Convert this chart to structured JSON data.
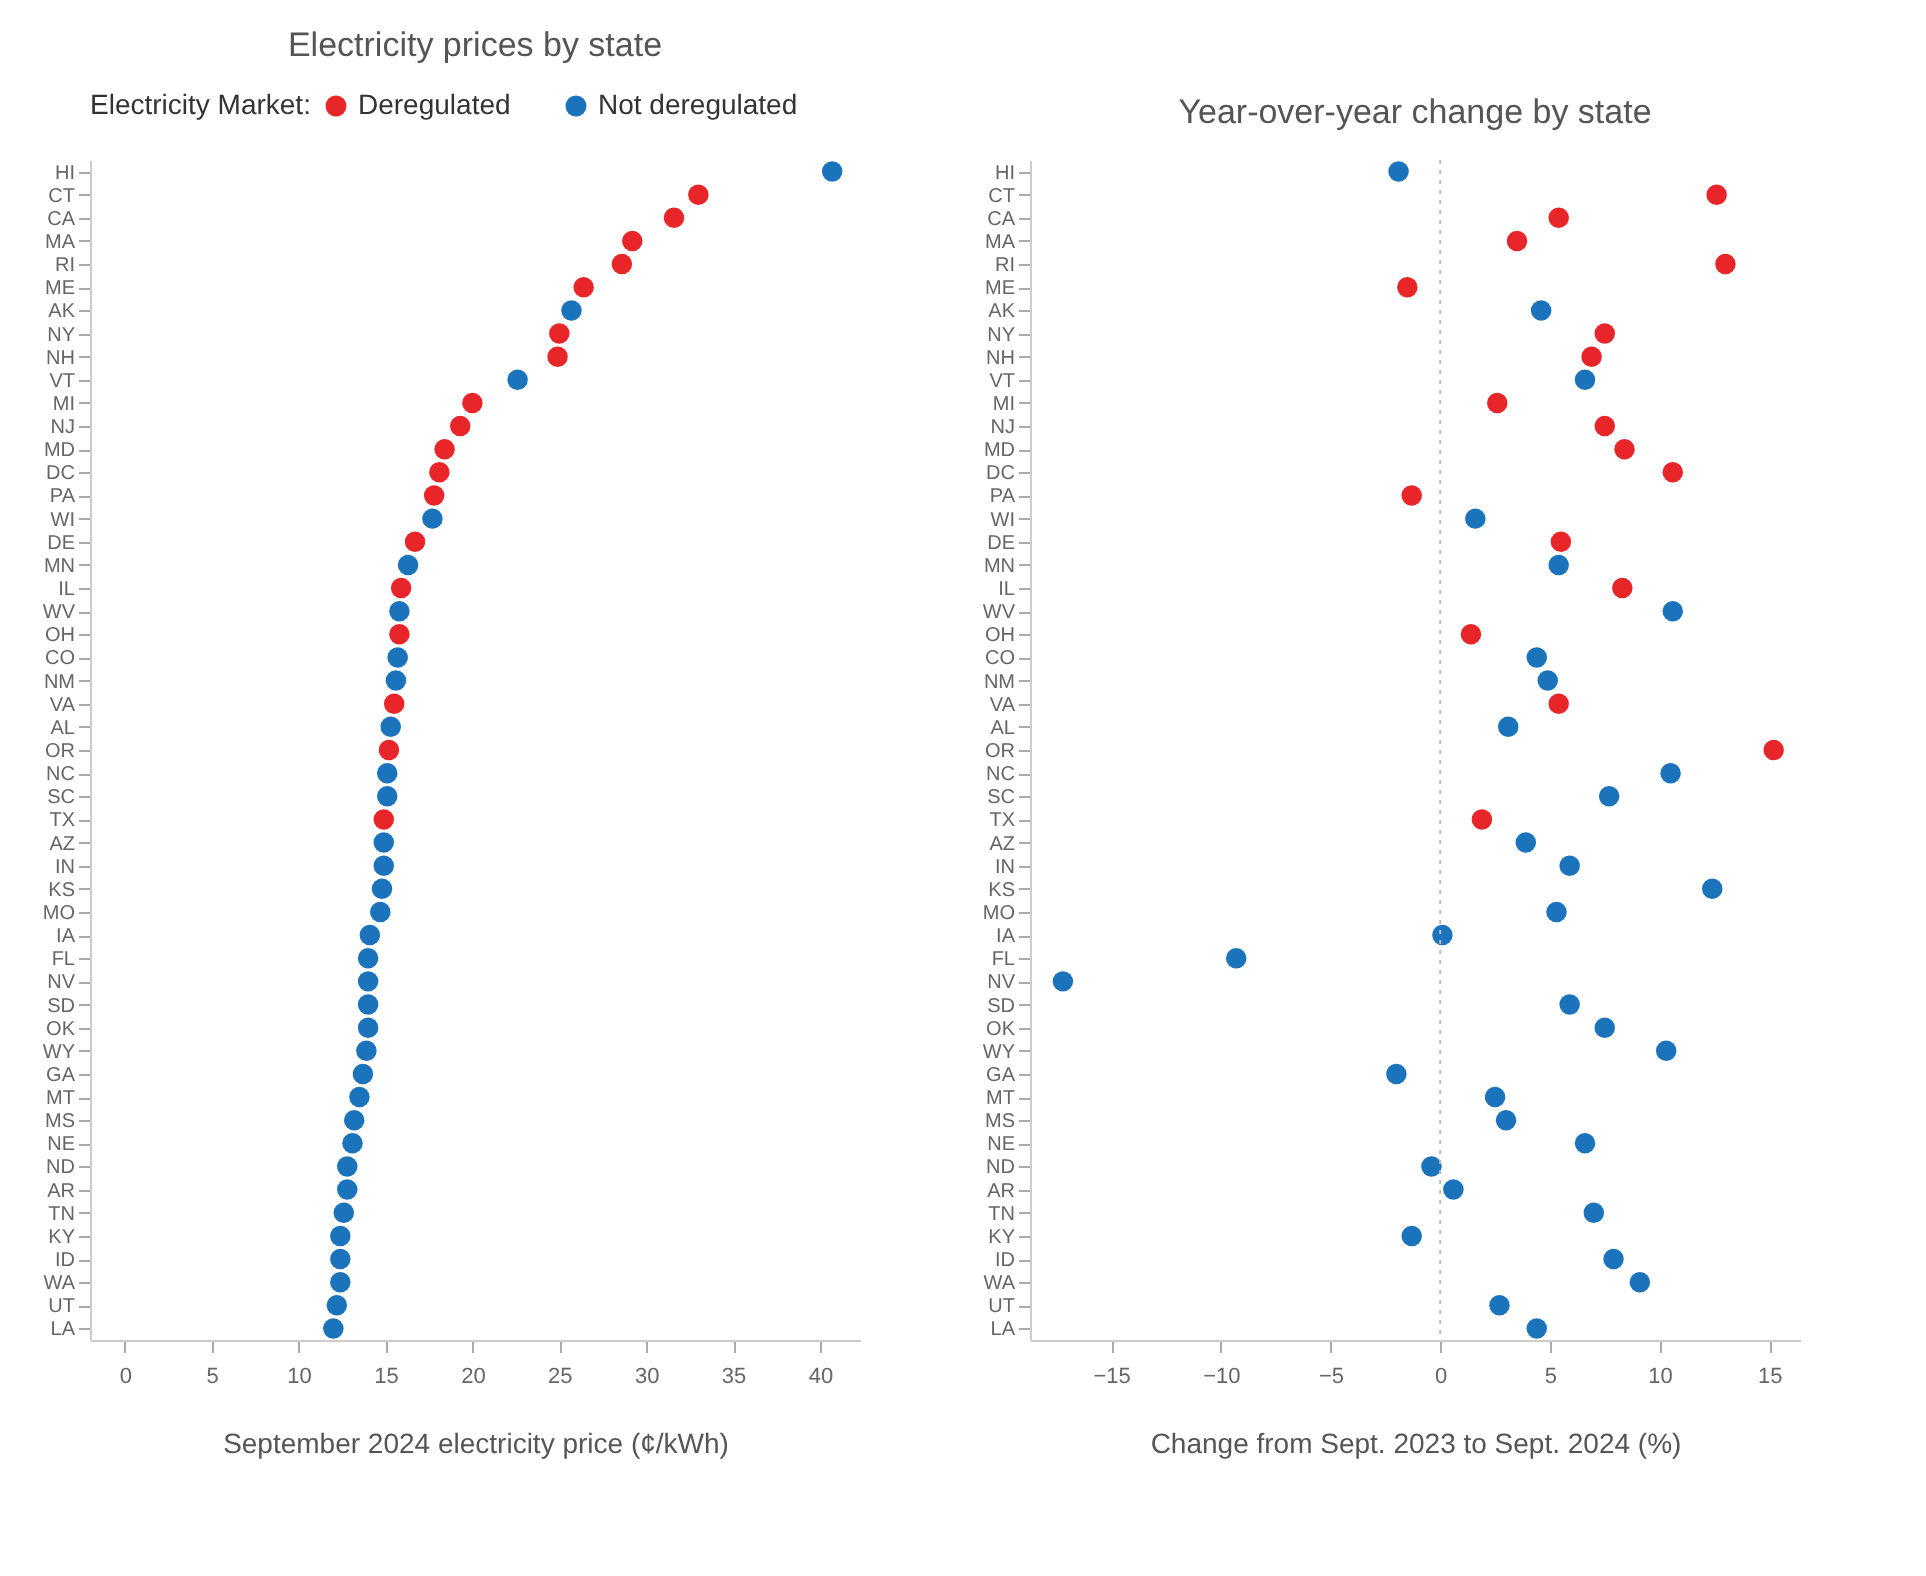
{
  "chart_data": [
    {
      "type": "scatter",
      "orientation": "horizontal",
      "title": "Electricity prices by state",
      "xlabel": "September 2024 electricity price (¢/kWh)",
      "legend_title": "Electricity Market:",
      "legend": "top",
      "marker": "circle",
      "categories": [
        "HI",
        "CT",
        "CA",
        "MA",
        "RI",
        "ME",
        "AK",
        "NY",
        "NH",
        "VT",
        "MI",
        "NJ",
        "MD",
        "DC",
        "PA",
        "WI",
        "DE",
        "MN",
        "IL",
        "WV",
        "OH",
        "CO",
        "NM",
        "VA",
        "AL",
        "OR",
        "NC",
        "SC",
        "TX",
        "AZ",
        "IN",
        "KS",
        "MO",
        "IA",
        "FL",
        "NV",
        "SD",
        "OK",
        "WY",
        "GA",
        "MT",
        "MS",
        "NE",
        "ND",
        "AR",
        "TN",
        "KY",
        "ID",
        "WA",
        "UT",
        "LA"
      ],
      "xlim": [
        -2,
        42.3
      ],
      "xticks": [
        0,
        5,
        10,
        15,
        20,
        25,
        30,
        35,
        40
      ],
      "series": [
        {
          "name": "Deregulated",
          "color": "#e8262a",
          "values": [
            null,
            33.0,
            31.6,
            29.2,
            28.6,
            26.4,
            null,
            25.0,
            24.9,
            null,
            20.0,
            19.3,
            18.4,
            18.1,
            17.8,
            null,
            16.7,
            null,
            15.9,
            null,
            15.8,
            null,
            null,
            15.5,
            null,
            15.2,
            null,
            null,
            14.9,
            null,
            null,
            null,
            null,
            null,
            null,
            null,
            null,
            null,
            null,
            null,
            null,
            null,
            null,
            null,
            null,
            null,
            null,
            null,
            null,
            null,
            null
          ]
        },
        {
          "name": "Not deregulated",
          "color": "#1a73bb",
          "values": [
            40.7,
            null,
            null,
            null,
            null,
            null,
            25.7,
            null,
            null,
            22.6,
            null,
            null,
            null,
            null,
            null,
            17.7,
            null,
            16.3,
            null,
            15.8,
            null,
            15.7,
            15.6,
            null,
            15.3,
            null,
            15.1,
            15.1,
            null,
            14.9,
            14.9,
            14.8,
            14.7,
            14.1,
            14.0,
            14.0,
            14.0,
            14.0,
            13.9,
            13.7,
            13.5,
            13.2,
            13.1,
            12.8,
            12.8,
            12.6,
            12.4,
            12.4,
            12.4,
            12.2,
            12.0
          ]
        }
      ]
    },
    {
      "type": "scatter",
      "orientation": "horizontal",
      "title": "Year-over-year change by state",
      "xlabel": "Change from Sept. 2023 to Sept. 2024 (%)",
      "marker": "circle",
      "categories": [
        "HI",
        "CT",
        "CA",
        "MA",
        "RI",
        "ME",
        "AK",
        "NY",
        "NH",
        "VT",
        "MI",
        "NJ",
        "MD",
        "DC",
        "PA",
        "WI",
        "DE",
        "MN",
        "IL",
        "WV",
        "OH",
        "CO",
        "NM",
        "VA",
        "AL",
        "OR",
        "NC",
        "SC",
        "TX",
        "AZ",
        "IN",
        "KS",
        "MO",
        "IA",
        "FL",
        "NV",
        "SD",
        "OK",
        "WY",
        "GA",
        "MT",
        "MS",
        "NE",
        "ND",
        "AR",
        "TN",
        "KY",
        "ID",
        "WA",
        "UT",
        "LA"
      ],
      "xlim": [
        -18.7,
        16.4
      ],
      "xticks": [
        -15,
        -10,
        -5,
        0,
        5,
        10,
        15
      ],
      "ref_lines": [
        {
          "axis": "x",
          "value": 0,
          "color": "#bbbbbb",
          "line_style": "dotted"
        }
      ],
      "series": [
        {
          "color": "#e8262a",
          "values": [
            null,
            12.6,
            5.4,
            3.5,
            13.0,
            -1.5,
            null,
            7.5,
            6.9,
            null,
            2.6,
            7.5,
            8.4,
            10.6,
            -1.3,
            null,
            5.5,
            null,
            8.3,
            null,
            1.4,
            null,
            null,
            5.4,
            null,
            15.2,
            null,
            null,
            1.9,
            null,
            null,
            null,
            null,
            null,
            null,
            null,
            null,
            null,
            null,
            null,
            null,
            null,
            null,
            null,
            null,
            null,
            null,
            null,
            null,
            null,
            null
          ]
        },
        {
          "color": "#1a73bb",
          "values": [
            -1.9,
            null,
            null,
            null,
            null,
            null,
            4.6,
            null,
            null,
            6.6,
            null,
            null,
            null,
            null,
            null,
            1.6,
            null,
            5.4,
            null,
            10.6,
            null,
            4.4,
            4.9,
            null,
            3.1,
            null,
            10.5,
            7.7,
            null,
            3.9,
            5.9,
            12.4,
            5.3,
            0.1,
            -9.3,
            -17.2,
            5.9,
            7.5,
            10.3,
            -2.0,
            2.5,
            3.0,
            6.6,
            -0.4,
            0.6,
            7.0,
            -1.3,
            7.9,
            9.1,
            2.7,
            4.4
          ]
        }
      ]
    }
  ]
}
